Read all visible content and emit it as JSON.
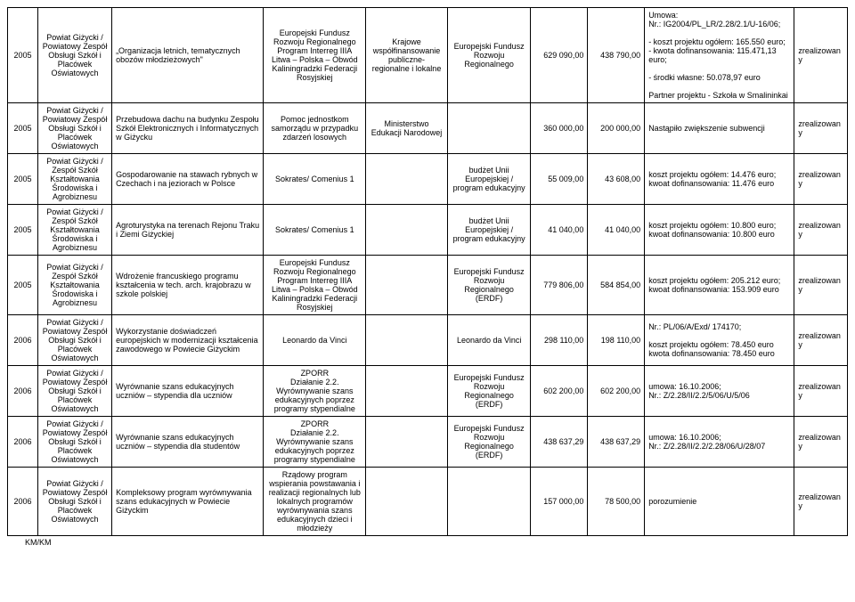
{
  "footer": "KM/KM",
  "rows": [
    {
      "year": "2005",
      "beneficiary": "Powiat Giżycki / Powiatowy Zespół Obsługi Szkół i Placówek Oświatowych",
      "title": "„Organizacja letnich, tematycznych obozów młodzieżowych\"",
      "program": "Europejski Fundusz Rozwoju Regionalnego Program Interreg IIIA Litwa – Polska – Obwód Kaliningradzki Federacji Rosyjskiej",
      "financing": "Krajowe współfinansowanie publiczne- regionalne i lokalne",
      "fund": "Europejski Fundusz Rozwoju Regionalnego",
      "amount1": "629 090,00",
      "amount2": "438 790,00",
      "notes": "Umowa:\nNr.: IG2004/PL_LR/2.28/2.1/U-16/06;\n\n- koszt projektu ogółem: 165.550 euro;\n- kwota dofinansowania: 115.471,13 euro;\n\n- środki własne: 50.078,97 euro\n\nPartner projektu - Szkoła w Smalininkai",
      "status": "zrealizowany"
    },
    {
      "year": "2005",
      "beneficiary": "Powiat Giżycki / Powiatowy Zespół Obsługi Szkół i Placówek Oświatowych",
      "title": "Przebudowa dachu na budynku Zespołu Szkół Elektronicznych i Informatycznych w Giżycku",
      "program": "Pomoc jednostkom samorządu w przypadku zdarzeń losowych",
      "financing": "Ministerstwo Edukacji Narodowej",
      "fund": "",
      "amount1": "360 000,00",
      "amount2": "200 000,00",
      "notes": "Nastąpiło zwiększenie subwencji",
      "status": "zrealizowany"
    },
    {
      "year": "2005",
      "beneficiary": "Powiat Giżycki / Zespół Szkół Kształtowania Środowiska i Agrobiznesu",
      "title": "Gospodarowanie na stawach rybnych w Czechach i na jeziorach w Polsce",
      "program": "Sokrates/ Comenius 1",
      "financing": "",
      "fund": "budżet Unii Europejskiej / program edukacyjny",
      "amount1": "55 009,00",
      "amount2": "43 608,00",
      "notes": "koszt projektu ogółem: 14.476 euro; kwoat dofinansowania: 11.476 euro",
      "status": "zrealizowany"
    },
    {
      "year": "2005",
      "beneficiary": "Powiat Giżycki / Zespół Szkół Kształtowania Środowiska i Agrobiznesu",
      "title": "Agroturystyka na terenach Rejonu Traku i Ziemi Giżyckiej",
      "program": "Sokrates/ Comenius 1",
      "financing": "",
      "fund": "budżet Unii Europejskiej / program edukacyjny",
      "amount1": "41 040,00",
      "amount2": "41 040,00",
      "notes": "koszt projektu ogółem: 10.800 euro; kwoat dofinansowania: 10.800 euro",
      "status": "zrealizowany"
    },
    {
      "year": "2005",
      "beneficiary": "Powiat Giżycki / Zespół Szkół Kształtowania Środowiska i Agrobiznesu",
      "title": "Wdrożenie francuskiego programu kształcenia w tech. arch. krajobrazu w szkole polskiej",
      "program": "Europejski Fundusz Rozwoju Regionalnego Program Interreg IIIA Litwa – Polska – Obwód Kaliningradzki Federacji Rosyjskiej",
      "financing": "",
      "fund": "Europejski Fundusz Rozwoju Regionalnego (ERDF)",
      "amount1": "779 806,00",
      "amount2": "584 854,00",
      "notes": "koszt projektu ogółem: 205.212 euro; kwoat dofinansowania: 153.909 euro",
      "status": "zrealizowany"
    },
    {
      "year": "2006",
      "beneficiary": "Powiat Giżycki / Powiatowy Zespół Obsługi Szkół i Placówek Oświatowych",
      "title": "Wykorzystanie doświadczeń europejskich w modernizacji kształcenia zawodowego w Powiecie Giżyckim",
      "program": "Leonardo da Vinci",
      "financing": "",
      "fund": "Leonardo da Vinci",
      "amount1": "298 110,00",
      "amount2": "198 110,00",
      "notes": "Nr.: PL/06/A/Exd/ 174170;\n\nkoszt projektu ogółem: 78.450 euro kwota dofinansowania: 78.450 euro",
      "status": "zrealizowany"
    },
    {
      "year": "2006",
      "beneficiary": "Powiat Giżycki / Powiatowy Zespół Obsługi Szkół i Placówek Oświatowych",
      "title": "Wyrównanie szans edukacyjnych uczniów – stypendia dla uczniów",
      "program": "ZPORR\nDziałanie 2.2. Wyrównywanie szans edukacyjnych poprzez programy stypendialne",
      "financing": "",
      "fund": "Europejski Fundusz Rozwoju Regionalnego (ERDF)",
      "amount1": "602 200,00",
      "amount2": "602 200,00",
      "notes": "umowa: 16.10.2006;\nNr.: Z/2.28/II/2.2/5/06/U/5/06",
      "status": "zrealizowany"
    },
    {
      "year": "2006",
      "beneficiary": "Powiat Giżycki / Powiatowy Zespół Obsługi Szkół i Placówek Oświatowych",
      "title": "Wyrównanie szans edukacyjnych uczniów – stypendia dla studentów",
      "program": "ZPORR\nDziałanie 2.2. Wyrównywanie szans edukacyjnych poprzez programy stypendialne",
      "financing": "",
      "fund": "Europejski Fundusz Rozwoju Regionalnego (ERDF)",
      "amount1": "438 637,29",
      "amount2": "438 637,29",
      "notes": "umowa: 16.10.2006;\nNr.: Z/2.28/II/2.2/2.28/06/U/28/07",
      "status": "zrealizowany"
    },
    {
      "year": "2006",
      "beneficiary": "Powiat Giżycki / Powiatowy Zespół Obsługi Szkół i Placówek Oświatowych",
      "title": "Kompleksowy program wyrównywania szans edukacyjnych w Powiecie Giżyckim",
      "program": "Rządowy program wspierania powstawania i realizacji regionalnych lub lokalnych programów wyrównywania szans edukacyjnych dzieci i młodzieży",
      "financing": "",
      "fund": "",
      "amount1": "157 000,00",
      "amount2": "78 500,00",
      "notes": "porozumienie",
      "status": "zrealizowany"
    }
  ]
}
